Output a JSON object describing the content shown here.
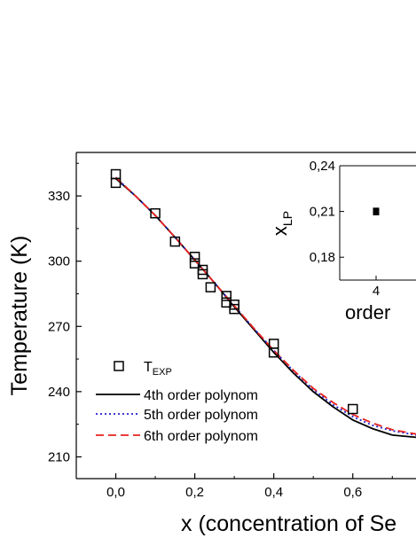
{
  "chart_data": {
    "type": "scatter",
    "xlabel": "x (concentration of Se",
    "ylabel": "Temperature (K)",
    "xlim": [
      -0.1,
      0.76
    ],
    "ylim": [
      200,
      350
    ],
    "x_ticks": [
      "0,0",
      "0,2",
      "0,4",
      "0,6"
    ],
    "x_tick_values": [
      0.0,
      0.2,
      0.4,
      0.6
    ],
    "y_ticks": [
      "210",
      "240",
      "270",
      "300",
      "330"
    ],
    "y_tick_values": [
      210,
      240,
      270,
      300,
      330
    ],
    "grid": false,
    "legend_position": "bottom-left",
    "series": [
      {
        "name": "T",
        "name_subscript": "EXP",
        "kind": "markers",
        "marker": "open-square",
        "color": "#000000",
        "x": [
          0.0,
          0.0,
          0.1,
          0.15,
          0.2,
          0.2,
          0.22,
          0.22,
          0.24,
          0.28,
          0.28,
          0.3,
          0.3,
          0.4,
          0.4,
          0.6
        ],
        "y": [
          340,
          336,
          322,
          309,
          302,
          299,
          296,
          294,
          288,
          284,
          281,
          280,
          278,
          262,
          258,
          232
        ]
      },
      {
        "name": "4th order polynom",
        "kind": "line",
        "style": "solid",
        "color": "#000000",
        "x": [
          0.0,
          0.05,
          0.1,
          0.15,
          0.2,
          0.25,
          0.3,
          0.35,
          0.4,
          0.45,
          0.5,
          0.55,
          0.6,
          0.65,
          0.7,
          0.76
        ],
        "y": [
          338,
          330,
          321,
          311,
          300.5,
          290,
          279,
          268.5,
          258,
          248.5,
          240,
          233,
          227,
          223,
          220,
          219
        ]
      },
      {
        "name": "5th order polynom",
        "kind": "line",
        "style": "dotted",
        "color": "#1f1fd1",
        "x": [
          0.0,
          0.05,
          0.1,
          0.15,
          0.2,
          0.25,
          0.3,
          0.35,
          0.4,
          0.45,
          0.5,
          0.55,
          0.6,
          0.65,
          0.7,
          0.76
        ],
        "y": [
          338.5,
          330,
          321,
          311,
          300.5,
          290,
          279.5,
          269,
          259,
          249.5,
          241,
          234,
          228.5,
          224.5,
          222,
          220
        ]
      },
      {
        "name": "6th order polynom",
        "kind": "line",
        "style": "dashed",
        "color": "#e8211e",
        "x": [
          0.0,
          0.05,
          0.1,
          0.15,
          0.2,
          0.25,
          0.3,
          0.35,
          0.4,
          0.45,
          0.5,
          0.55,
          0.6,
          0.65,
          0.7,
          0.76
        ],
        "y": [
          338.5,
          330,
          321,
          311,
          300.5,
          290,
          279.5,
          269,
          259,
          249.8,
          241.5,
          235,
          229.5,
          225.5,
          222.5,
          220.5
        ]
      }
    ],
    "inset": {
      "type": "scatter",
      "ylabel": "x",
      "ylabel_subscript": "LP",
      "xlabel": "order",
      "ylim": [
        0.165,
        0.24
      ],
      "y_ticks": [
        "0,24",
        "0,21",
        "0,18"
      ],
      "y_tick_values": [
        0.24,
        0.21,
        0.18
      ],
      "x_ticks": [
        "4"
      ],
      "x_tick_values": [
        4
      ],
      "points": [
        {
          "x": 4,
          "y": 0.21,
          "err": 0.0025
        }
      ]
    }
  }
}
